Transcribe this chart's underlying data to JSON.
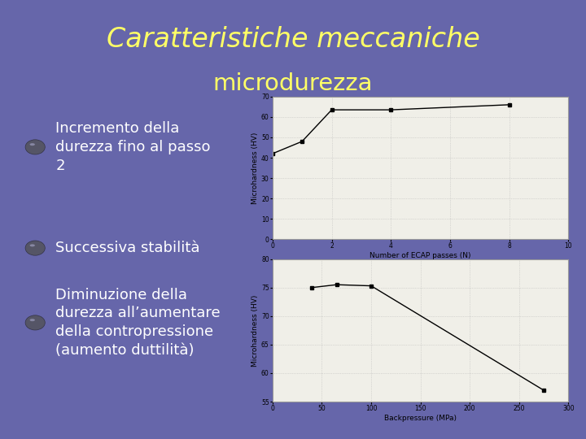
{
  "title_line1": "Caratteristiche meccaniche",
  "title_line2": "microdurezza",
  "title_color": "#FFFF66",
  "background_color": "#6666AA",
  "bullet_text": [
    "Incremento della\ndurezza fino al passo\n2",
    "Successiva stabilità",
    "Diminuzione della\ndurezza all’aumentare\ndella contropressione\n(aumento duttilità)"
  ],
  "bullet_color": "#FFFFFF",
  "chart1": {
    "x": [
      0,
      1,
      2,
      4,
      8
    ],
    "y": [
      42,
      48,
      63.5,
      63.5,
      66
    ],
    "xlabel": "Number of ECAP passes (N)",
    "ylabel": "Microhardness (HV)",
    "xlim": [
      0,
      10
    ],
    "ylim": [
      0,
      70
    ],
    "xticks": [
      0,
      2,
      4,
      6,
      8,
      10
    ],
    "yticks": [
      0,
      10,
      20,
      30,
      40,
      50,
      60,
      70
    ]
  },
  "chart2": {
    "x": [
      40,
      65,
      100,
      275
    ],
    "y": [
      75,
      75.5,
      75.3,
      57
    ],
    "xlabel": "Backpressure (MPa)",
    "ylabel": "Microhardness (HV)",
    "xlim": [
      0,
      300
    ],
    "ylim": [
      55,
      80
    ],
    "xticks": [
      0,
      50,
      100,
      150,
      200,
      250,
      300
    ],
    "yticks": [
      55,
      60,
      65,
      70,
      75,
      80
    ]
  },
  "chart_bg": "#F0EFE8",
  "chart_border": "#CCCCCC"
}
